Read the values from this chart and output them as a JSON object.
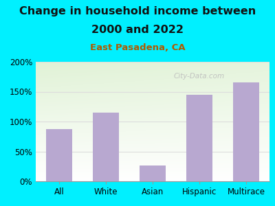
{
  "categories": [
    "All",
    "White",
    "Asian",
    "Hispanic",
    "Multirace"
  ],
  "values": [
    87,
    115,
    27,
    145,
    165
  ],
  "bar_color": "#b8a8d0",
  "title_line1": "Change in household income between",
  "title_line2": "2000 and 2022",
  "subtitle": "East Pasadena, CA",
  "title_fontsize": 11.5,
  "subtitle_fontsize": 9.5,
  "title_color": "#111111",
  "subtitle_color": "#b05a00",
  "background_color": "#00f0ff",
  "plot_bg_color_topleft": "#e0f0d8",
  "plot_bg_color_topright": "#f8faf5",
  "plot_bg_color_bottom": "#ffffff",
  "ylim": [
    0,
    200
  ],
  "yticks": [
    0,
    50,
    100,
    150,
    200
  ],
  "ytick_labels": [
    "0%",
    "50%",
    "100%",
    "150%",
    "200%"
  ],
  "watermark": "City-Data.com",
  "watermark_color": "#bbbbbb",
  "grid_color": "#dddddd"
}
